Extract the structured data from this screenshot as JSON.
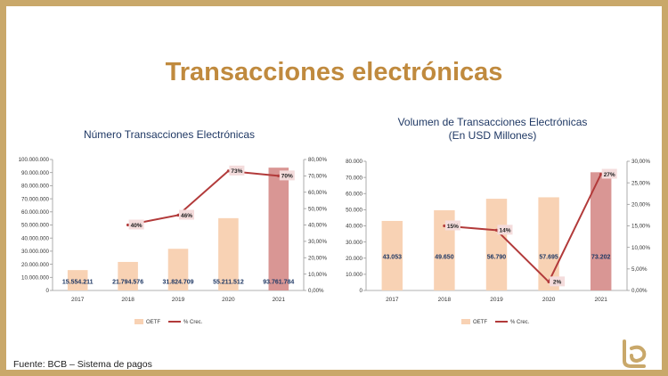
{
  "slide": {
    "title": "Transacciones electrónicas",
    "footer": "Fuente: BCB – Sistema de pagos",
    "logo_icon": "bcb-logo-icon",
    "colors": {
      "border": "#c9a86a",
      "title": "#c08a3e",
      "bar": "#f8d2b4",
      "bar_highlight": "#d99694",
      "line": "#b23a3a",
      "label_box": "#f4dcdc",
      "chart_title": "#1f3864"
    }
  },
  "chart_data": [
    {
      "type": "bar",
      "title": "Número Transacciones Electrónicas",
      "categories": [
        "2017",
        "2018",
        "2019",
        "2020",
        "2021"
      ],
      "series": [
        {
          "name": "OETF",
          "type": "bar",
          "axis": "left",
          "values": [
            15554211,
            21794576,
            31824709,
            55211512,
            93761784
          ],
          "labels": [
            "15.554.211",
            "21.794.576",
            "31.824.709",
            "55.211.512",
            "93.761.784"
          ]
        },
        {
          "name": "% Crec.",
          "type": "line",
          "axis": "right",
          "values": [
            null,
            40,
            46,
            73,
            70
          ],
          "labels": [
            "",
            "40%",
            "46%",
            "73%",
            "70%"
          ]
        }
      ],
      "ylim": [
        0,
        100000000
      ],
      "y_ticks": [
        "0",
        "10.000.000",
        "20.000.000",
        "30.000.000",
        "40.000.000",
        "50.000.000",
        "60.000.000",
        "70.000.000",
        "80.000.000",
        "90.000.000",
        "100.000.000"
      ],
      "y2lim": [
        0,
        80
      ],
      "y2_ticks": [
        "0,00%",
        "10,00%",
        "20,00%",
        "30,00%",
        "40,00%",
        "50,00%",
        "60,00%",
        "70,00%",
        "80,00%"
      ],
      "legend": "bottom",
      "grid": false
    },
    {
      "type": "bar",
      "title": "Volumen de Transacciones Electrónicas",
      "subtitle": "(En USD Millones)",
      "categories": [
        "2017",
        "2018",
        "2019",
        "2020",
        "2021"
      ],
      "series": [
        {
          "name": "OETF",
          "type": "bar",
          "axis": "left",
          "values": [
            43053,
            49650,
            56790,
            57695,
            73202
          ],
          "labels": [
            "43.053",
            "49.650",
            "56.790",
            "57.695",
            "73.202"
          ]
        },
        {
          "name": "% Crec.",
          "type": "line",
          "axis": "right",
          "values": [
            null,
            15,
            14,
            2,
            27
          ],
          "labels": [
            "",
            "15%",
            "14%",
            "2%",
            "27%"
          ]
        }
      ],
      "ylim": [
        0,
        80000
      ],
      "y_ticks": [
        "0",
        "10.000",
        "20.000",
        "30.000",
        "40.000",
        "50.000",
        "60.000",
        "70.000",
        "80.000"
      ],
      "y2lim": [
        0,
        30
      ],
      "y2_ticks": [
        "0,00%",
        "5,00%",
        "10,00%",
        "15,00%",
        "20,00%",
        "25,00%",
        "30,00%"
      ],
      "legend": "bottom",
      "grid": false
    }
  ]
}
